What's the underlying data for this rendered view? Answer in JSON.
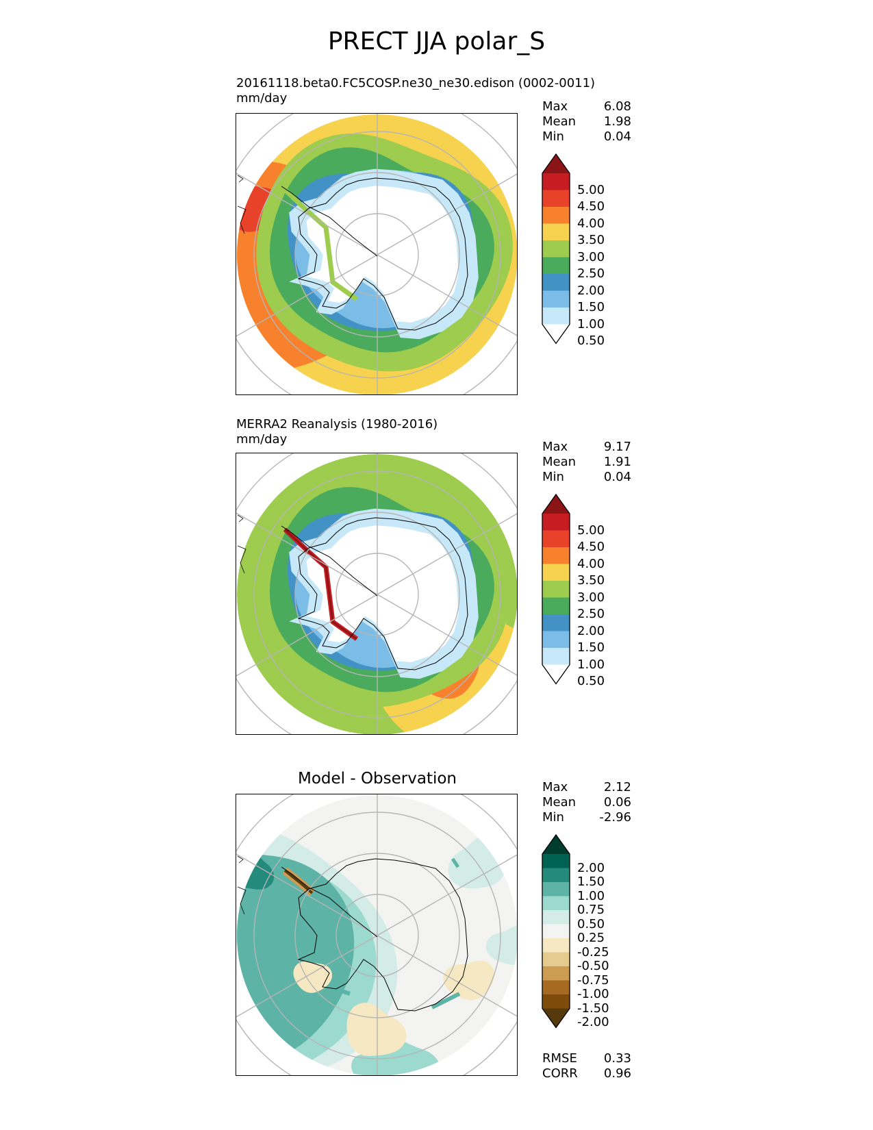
{
  "title": "PRECT JJA polar_S",
  "colors": {
    "precip": [
      "#ffffff",
      "#c6e8f8",
      "#7cbde8",
      "#4292c6",
      "#4aab5c",
      "#9ecc4e",
      "#f7d24e",
      "#f7812c",
      "#e8432a",
      "#c51d21",
      "#8b1417"
    ],
    "diff": [
      "#573a0b",
      "#7e4b0b",
      "#a66a23",
      "#cc9c52",
      "#e5cc8e",
      "#f6e8c3",
      "#f3f4f2",
      "#d4ece8",
      "#9cd9cf",
      "#5cb3a6",
      "#238a7c",
      "#006253",
      "#013c30"
    ],
    "grid": "#b5b5b5",
    "coast": "#000000"
  },
  "panels": [
    {
      "id": "test",
      "title": "20161118.beta0.FC5COSP.ne30_ne30.edison (0002-0011)",
      "units": "mm/day",
      "stats": [
        {
          "label": "Max",
          "value": "6.08"
        },
        {
          "label": "Mean",
          "value": "1.98"
        },
        {
          "label": "Min",
          "value": "0.04"
        }
      ],
      "levels": [
        "5.00",
        "4.50",
        "4.00",
        "3.50",
        "3.00",
        "2.50",
        "2.00",
        "1.50",
        "1.00",
        "0.50"
      ]
    },
    {
      "id": "ref",
      "title": "MERRA2 Reanalysis (1980-2016)",
      "units": "mm/day",
      "stats": [
        {
          "label": "Max",
          "value": "9.17"
        },
        {
          "label": "Mean",
          "value": "1.91"
        },
        {
          "label": "Min",
          "value": "0.04"
        }
      ],
      "levels": [
        "5.00",
        "4.50",
        "4.00",
        "3.50",
        "3.00",
        "2.50",
        "2.00",
        "1.50",
        "1.00",
        "0.50"
      ]
    },
    {
      "id": "diff",
      "title": "Model - Observation",
      "stats": [
        {
          "label": "Max",
          "value": "2.12"
        },
        {
          "label": "Mean",
          "value": "0.06"
        },
        {
          "label": "Min",
          "value": "-2.96"
        }
      ],
      "levels": [
        "2.00",
        "1.50",
        "1.00",
        "0.75",
        "0.50",
        "0.25",
        "-0.25",
        "-0.50",
        "-0.75",
        "-1.00",
        "-1.50",
        "-2.00"
      ],
      "metrics": [
        {
          "label": "RMSE",
          "value": "0.33"
        },
        {
          "label": "CORR",
          "value": "0.96"
        }
      ]
    }
  ],
  "chart_data": [
    {
      "type": "heatmap",
      "projection": "south-polar-stereographic",
      "title": "20161118.beta0.FC5COSP.ne30_ne30.edison (0002-0011)",
      "units": "mm/day",
      "levels": [
        0.5,
        1.0,
        1.5,
        2.0,
        2.5,
        3.0,
        3.5,
        4.0,
        4.5,
        5.0
      ],
      "extend": "both",
      "max": 6.08,
      "mean": 1.98,
      "min": 0.04
    },
    {
      "type": "heatmap",
      "projection": "south-polar-stereographic",
      "title": "MERRA2 Reanalysis (1980-2016)",
      "units": "mm/day",
      "levels": [
        0.5,
        1.0,
        1.5,
        2.0,
        2.5,
        3.0,
        3.5,
        4.0,
        4.5,
        5.0
      ],
      "extend": "both",
      "max": 9.17,
      "mean": 1.91,
      "min": 0.04
    },
    {
      "type": "heatmap",
      "projection": "south-polar-stereographic",
      "title": "Model - Observation",
      "levels": [
        -2.0,
        -1.5,
        -1.0,
        -0.75,
        -0.5,
        -0.25,
        0.25,
        0.5,
        0.75,
        1.0,
        1.5,
        2.0
      ],
      "extend": "both",
      "max": 2.12,
      "mean": 0.06,
      "min": -2.96,
      "rmse": 0.33,
      "corr": 0.96
    }
  ]
}
